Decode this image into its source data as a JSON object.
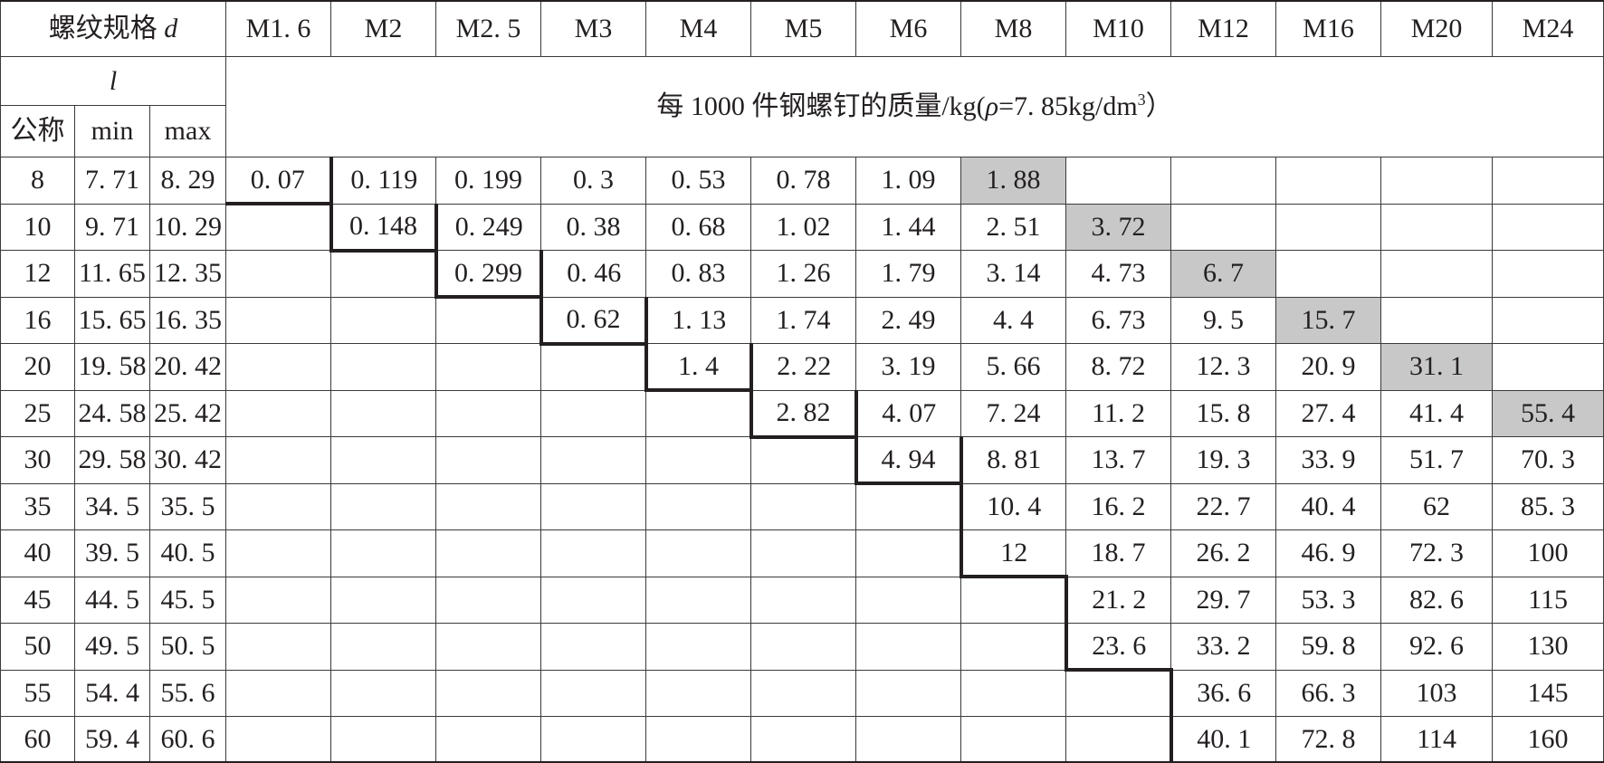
{
  "header": {
    "thread_spec_label": "螺纹规格 ",
    "thread_spec_symbol": "d",
    "length_symbol": "l",
    "nominal_label": "公称",
    "min_label": "min",
    "max_label": "max",
    "mass_title_prefix": "每 1000 件钢螺钉的质量/kg(",
    "mass_title_rho": "ρ",
    "mass_title_mid": "=7. 85kg/dm",
    "mass_title_sup": "3",
    "mass_title_suffix": "）",
    "sizes": [
      "M1. 6",
      "M2",
      "M2. 5",
      "M3",
      "M4",
      "M5",
      "M6",
      "M8",
      "M10",
      "M12",
      "M16",
      "M20",
      "M24"
    ]
  },
  "rows": [
    {
      "nominal": "8",
      "min": "7. 71",
      "max": "8. 29",
      "masses": [
        "0. 07",
        "0. 119",
        "0. 199",
        "0. 3",
        "0. 53",
        "0. 78",
        "1. 09",
        "1. 88",
        "",
        "",
        "",
        "",
        ""
      ]
    },
    {
      "nominal": "10",
      "min": "9. 71",
      "max": "10. 29",
      "masses": [
        "",
        "0. 148",
        "0. 249",
        "0. 38",
        "0. 68",
        "1. 02",
        "1. 44",
        "2. 51",
        "3. 72",
        "",
        "",
        "",
        ""
      ]
    },
    {
      "nominal": "12",
      "min": "11. 65",
      "max": "12. 35",
      "masses": [
        "",
        "",
        "0. 299",
        "0. 46",
        "0. 83",
        "1. 26",
        "1. 79",
        "3. 14",
        "4. 73",
        "6. 7",
        "",
        "",
        ""
      ]
    },
    {
      "nominal": "16",
      "min": "15. 65",
      "max": "16. 35",
      "masses": [
        "",
        "",
        "",
        "0. 62",
        "1. 13",
        "1. 74",
        "2. 49",
        "4. 4",
        "6. 73",
        "9. 5",
        "15. 7",
        "",
        ""
      ]
    },
    {
      "nominal": "20",
      "min": "19. 58",
      "max": "20. 42",
      "masses": [
        "",
        "",
        "",
        "",
        "1. 4",
        "2. 22",
        "3. 19",
        "5. 66",
        "8. 72",
        "12. 3",
        "20. 9",
        "31. 1",
        ""
      ]
    },
    {
      "nominal": "25",
      "min": "24. 58",
      "max": "25. 42",
      "masses": [
        "",
        "",
        "",
        "",
        "",
        "2. 82",
        "4. 07",
        "7. 24",
        "11. 2",
        "15. 8",
        "27. 4",
        "41. 4",
        "55. 4"
      ]
    },
    {
      "nominal": "30",
      "min": "29. 58",
      "max": "30. 42",
      "masses": [
        "",
        "",
        "",
        "",
        "",
        "",
        "4. 94",
        "8. 81",
        "13. 7",
        "19. 3",
        "33. 9",
        "51. 7",
        "70. 3"
      ]
    },
    {
      "nominal": "35",
      "min": "34. 5",
      "max": "35. 5",
      "masses": [
        "",
        "",
        "",
        "",
        "",
        "",
        "",
        "10. 4",
        "16. 2",
        "22. 7",
        "40. 4",
        "62",
        "85. 3"
      ]
    },
    {
      "nominal": "40",
      "min": "39. 5",
      "max": "40. 5",
      "masses": [
        "",
        "",
        "",
        "",
        "",
        "",
        "",
        "12",
        "18. 7",
        "26. 2",
        "46. 9",
        "72. 3",
        "100"
      ]
    },
    {
      "nominal": "45",
      "min": "44. 5",
      "max": "45. 5",
      "masses": [
        "",
        "",
        "",
        "",
        "",
        "",
        "",
        "",
        "21. 2",
        "29. 7",
        "53. 3",
        "82. 6",
        "115"
      ]
    },
    {
      "nominal": "50",
      "min": "49. 5",
      "max": "50. 5",
      "masses": [
        "",
        "",
        "",
        "",
        "",
        "",
        "",
        "",
        "23. 6",
        "33. 2",
        "59. 8",
        "92. 6",
        "130"
      ]
    },
    {
      "nominal": "55",
      "min": "54. 4",
      "max": "55. 6",
      "masses": [
        "",
        "",
        "",
        "",
        "",
        "",
        "",
        "",
        "",
        "36. 6",
        "66. 3",
        "103",
        "145"
      ]
    },
    {
      "nominal": "60",
      "min": "59. 4",
      "max": "60. 6",
      "masses": [
        "",
        "",
        "",
        "",
        "",
        "",
        "",
        "",
        "",
        "40. 1",
        "72. 8",
        "114",
        "160"
      ]
    }
  ],
  "shaded_cells": [
    [
      0,
      7
    ],
    [
      1,
      8
    ],
    [
      2,
      9
    ],
    [
      3,
      10
    ],
    [
      4,
      11
    ],
    [
      5,
      12
    ]
  ],
  "range_first_row": [
    0,
    1,
    2,
    3,
    4,
    5,
    6,
    7,
    7,
    7,
    7,
    7,
    7
  ],
  "range_last_row": [
    0,
    1,
    2,
    3,
    4,
    5,
    6,
    8,
    10,
    12,
    12,
    12,
    12
  ],
  "colors": {
    "line": "#231f20",
    "grid": "#3a3a3a",
    "shade": "#c8c8c8",
    "background": "#ffffff"
  }
}
